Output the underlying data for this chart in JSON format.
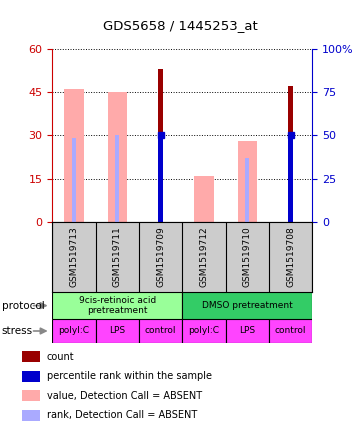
{
  "title": "GDS5658 / 1445253_at",
  "samples": [
    "GSM1519713",
    "GSM1519711",
    "GSM1519709",
    "GSM1519712",
    "GSM1519710",
    "GSM1519708"
  ],
  "count_values": [
    0,
    0,
    53,
    0,
    0,
    47
  ],
  "value_absent": [
    46,
    45,
    0,
    16,
    28,
    0
  ],
  "rank_absent": [
    29,
    30,
    0,
    0,
    22,
    0
  ],
  "rank_present": [
    0,
    0,
    30,
    0,
    0,
    30
  ],
  "ylim_left": [
    0,
    60
  ],
  "ylim_right": [
    0,
    100
  ],
  "yticks_left": [
    0,
    15,
    30,
    45,
    60
  ],
  "yticks_right": [
    0,
    25,
    50,
    75,
    100
  ],
  "yticklabels_right": [
    "0",
    "25",
    "50",
    "75",
    "100%"
  ],
  "bar_color_count": "#990000",
  "bar_color_value_absent": "#ffaaaa",
  "bar_color_rank_absent": "#aaaaff",
  "bar_color_rank_present": "#0000cc",
  "left_axis_color": "#cc0000",
  "right_axis_color": "#0000cc",
  "bg_color": "#cccccc",
  "proto_data": [
    {
      "label": "9cis-retinoic acid\npretreatment",
      "color": "#99ff99",
      "start": 0,
      "end": 3
    },
    {
      "label": "DMSO pretreatment",
      "color": "#33cc66",
      "start": 3,
      "end": 6
    }
  ],
  "stress_labels": [
    "polyI:C",
    "LPS",
    "control",
    "polyI:C",
    "LPS",
    "control"
  ],
  "stress_color": "#ff44ff",
  "legend_items": [
    {
      "color": "#990000",
      "label": "count"
    },
    {
      "color": "#0000cc",
      "label": "percentile rank within the sample"
    },
    {
      "color": "#ffaaaa",
      "label": "value, Detection Call = ABSENT"
    },
    {
      "color": "#aaaaff",
      "label": "rank, Detection Call = ABSENT"
    }
  ]
}
